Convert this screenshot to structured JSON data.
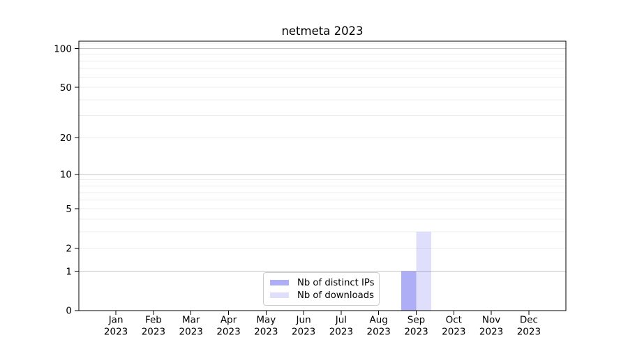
{
  "chart_data": {
    "type": "bar",
    "title": "netmeta 2023",
    "categories": [
      {
        "month": "Jan",
        "year": "2023"
      },
      {
        "month": "Feb",
        "year": "2023"
      },
      {
        "month": "Mar",
        "year": "2023"
      },
      {
        "month": "Apr",
        "year": "2023"
      },
      {
        "month": "May",
        "year": "2023"
      },
      {
        "month": "Jun",
        "year": "2023"
      },
      {
        "month": "Jul",
        "year": "2023"
      },
      {
        "month": "Aug",
        "year": "2023"
      },
      {
        "month": "Sep",
        "year": "2023"
      },
      {
        "month": "Oct",
        "year": "2023"
      },
      {
        "month": "Nov",
        "year": "2023"
      },
      {
        "month": "Dec",
        "year": "2023"
      }
    ],
    "series": [
      {
        "name": "Nb of distinct IPs",
        "color": "rgba(62,62,235,0.42)",
        "swatch_hex": "#a9a9f4",
        "values": [
          0,
          0,
          0,
          0,
          0,
          0,
          0,
          0,
          1,
          0,
          0,
          0
        ]
      },
      {
        "name": "Nb of downloads",
        "color": "rgba(62,62,235,0.165)",
        "swatch_hex": "#dedefb",
        "values": [
          0,
          0,
          0,
          0,
          0,
          0,
          0,
          0,
          3,
          0,
          0,
          0
        ]
      }
    ],
    "y_axis": {
      "scale": "log1p",
      "ylim": [
        0,
        114
      ],
      "tick_values": [
        0,
        1,
        2,
        5,
        10,
        20,
        50,
        100
      ],
      "tick_labels": [
        "0",
        "1",
        "2",
        "5",
        "10",
        "20",
        "50",
        "100"
      ],
      "major_grid_values": [
        1,
        10,
        100
      ],
      "minor_grid_values": [
        2,
        3,
        4,
        5,
        6,
        7,
        8,
        9,
        20,
        30,
        40,
        50,
        60,
        70,
        80,
        90,
        110
      ]
    },
    "x_axis": {
      "label": "",
      "tick_style": "two-line month/year"
    },
    "legend": {
      "position": "inside-bottom-center",
      "entries": [
        "Nb of distinct IPs",
        "Nb of downloads"
      ]
    },
    "grid": true,
    "colors": {
      "background": "#ffffff",
      "major_grid": "#c6c6c6",
      "minor_grid": "#ececec",
      "axis": "#000000",
      "text": "#000000",
      "legend_border": "#cccccc"
    }
  }
}
